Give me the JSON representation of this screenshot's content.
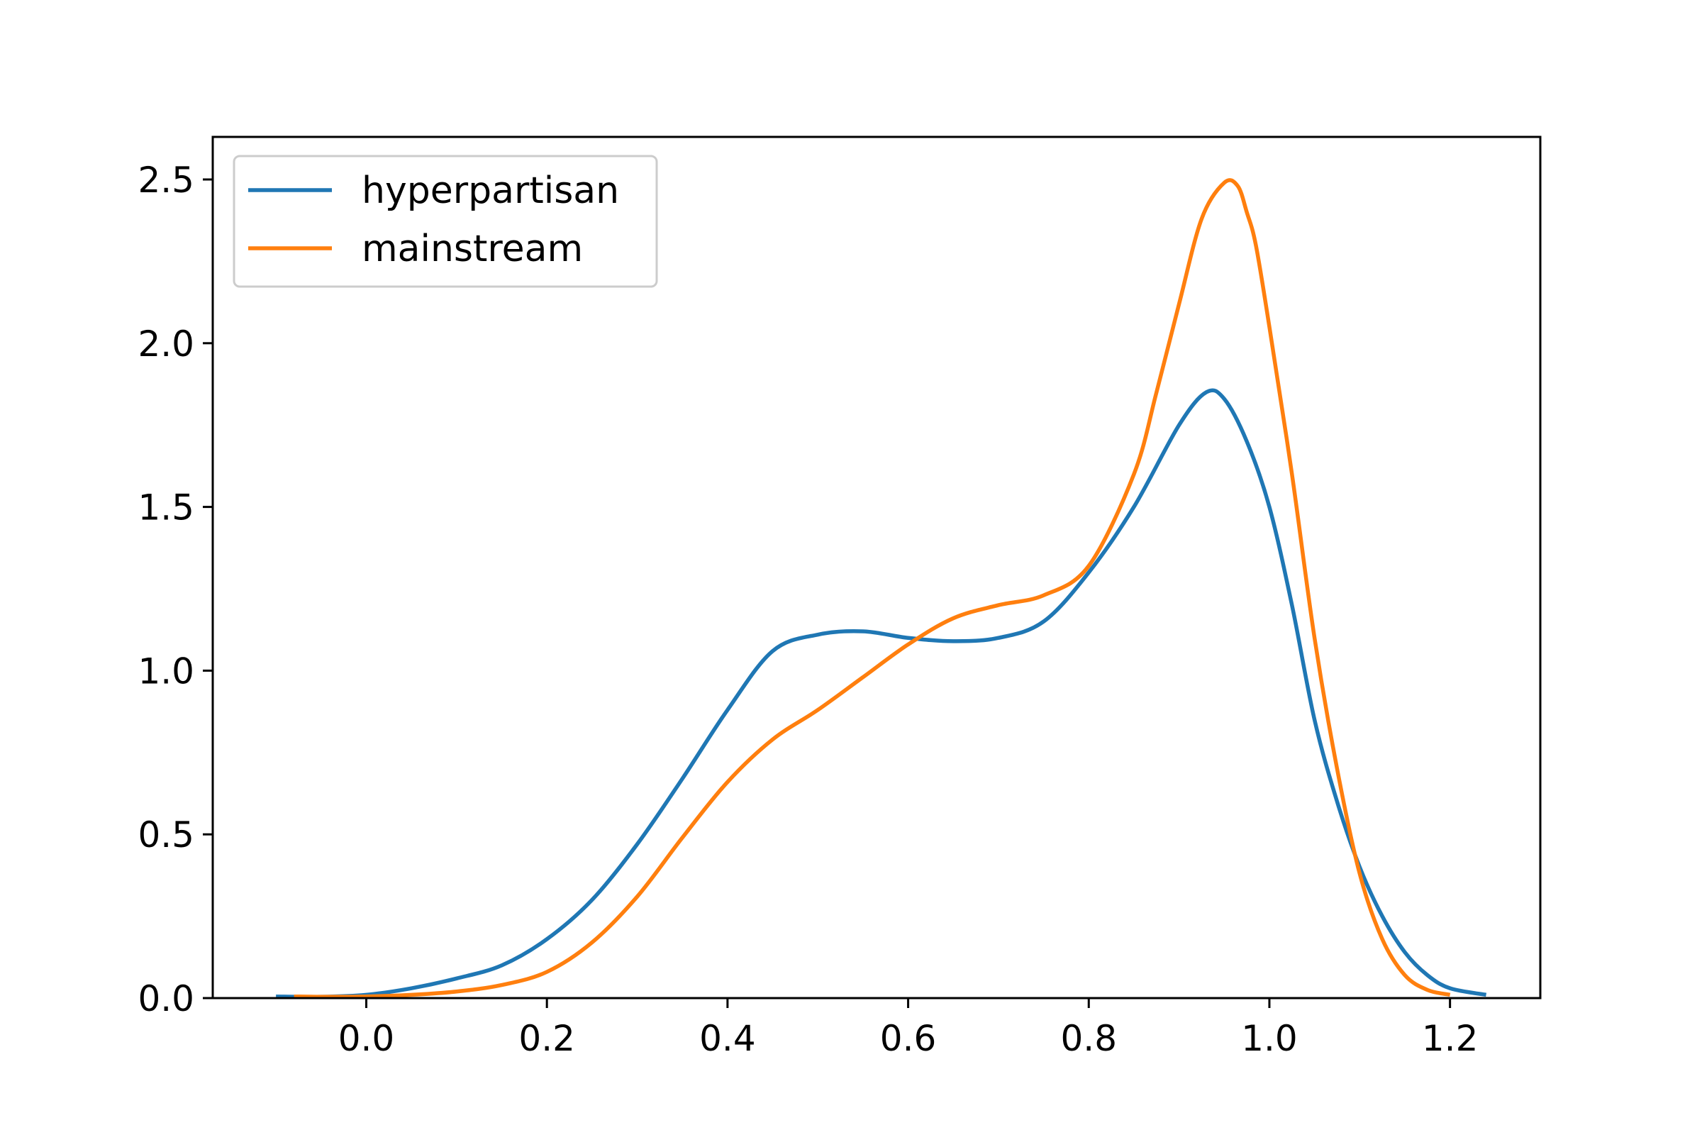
{
  "chart_data": {
    "type": "line",
    "title": "",
    "xlabel": "",
    "ylabel": "",
    "xlim": [
      -0.17,
      1.3
    ],
    "ylim": [
      0.0,
      2.63
    ],
    "xticks": [
      0.0,
      0.2,
      0.4,
      0.6,
      0.8,
      1.0,
      1.2
    ],
    "xtick_labels": [
      "0.0",
      "0.2",
      "0.4",
      "0.6",
      "0.8",
      "1.0",
      "1.2"
    ],
    "yticks": [
      0.0,
      0.5,
      1.0,
      1.5,
      2.0,
      2.5
    ],
    "ytick_labels": [
      "0.0",
      "0.5",
      "1.0",
      "1.5",
      "2.0",
      "2.5"
    ],
    "grid": false,
    "legend_position": "top-left",
    "series": [
      {
        "name": "hyperpartisan",
        "color": "#1f77b4",
        "x": [
          -0.1,
          -0.05,
          0.0,
          0.05,
          0.1,
          0.15,
          0.2,
          0.25,
          0.3,
          0.35,
          0.4,
          0.45,
          0.5,
          0.55,
          0.6,
          0.65,
          0.7,
          0.75,
          0.8,
          0.85,
          0.9,
          0.93,
          0.95,
          0.975,
          1.0,
          1.025,
          1.05,
          1.075,
          1.1,
          1.125,
          1.15,
          1.175,
          1.2,
          1.24
        ],
        "y": [
          0.005,
          0.004,
          0.01,
          0.03,
          0.06,
          0.1,
          0.18,
          0.3,
          0.47,
          0.67,
          0.88,
          1.06,
          1.11,
          1.12,
          1.1,
          1.09,
          1.1,
          1.15,
          1.3,
          1.5,
          1.75,
          1.85,
          1.83,
          1.7,
          1.5,
          1.2,
          0.85,
          0.6,
          0.4,
          0.25,
          0.14,
          0.07,
          0.03,
          0.01
        ]
      },
      {
        "name": "mainstream",
        "color": "#ff7f0e",
        "x": [
          -0.08,
          -0.05,
          0.0,
          0.05,
          0.1,
          0.15,
          0.2,
          0.25,
          0.3,
          0.35,
          0.4,
          0.45,
          0.5,
          0.55,
          0.6,
          0.65,
          0.7,
          0.75,
          0.8,
          0.85,
          0.875,
          0.9,
          0.925,
          0.95,
          0.965,
          0.975,
          0.985,
          1.0,
          1.025,
          1.05,
          1.075,
          1.1,
          1.125,
          1.15,
          1.175,
          1.2
        ],
        "y": [
          0.005,
          0.004,
          0.005,
          0.01,
          0.02,
          0.04,
          0.08,
          0.17,
          0.31,
          0.49,
          0.66,
          0.79,
          0.88,
          0.98,
          1.08,
          1.16,
          1.2,
          1.23,
          1.32,
          1.6,
          1.85,
          2.12,
          2.38,
          2.49,
          2.48,
          2.4,
          2.3,
          2.05,
          1.6,
          1.1,
          0.7,
          0.38,
          0.18,
          0.07,
          0.025,
          0.01
        ]
      }
    ]
  }
}
